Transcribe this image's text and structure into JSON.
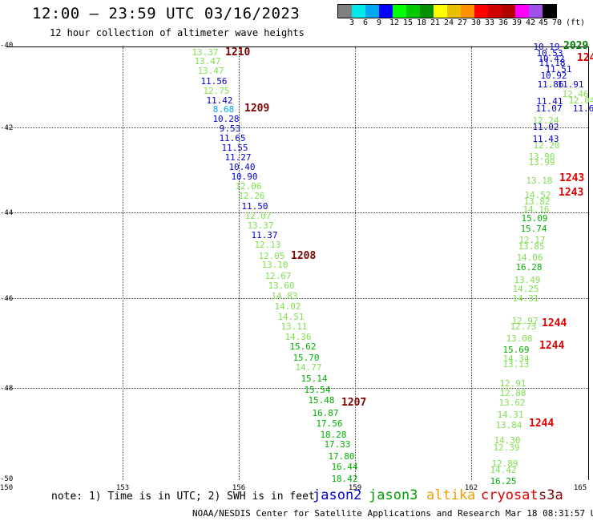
{
  "header": {
    "title": "12:00 — 23:59 UTC 03/16/2023",
    "subtitle": "12 hour collection of altimeter wave heights"
  },
  "legend": {
    "colors": [
      "#7f7f7f",
      "#00e8e8",
      "#00a8f0",
      "#0000ff",
      "#00ff00",
      "#00c800",
      "#009000",
      "#ffff00",
      "#e8c000",
      "#ff9000",
      "#ff0000",
      "#d00000",
      "#b00000",
      "#ff00ff",
      "#a050e8",
      "#000000"
    ],
    "labels": [
      "3",
      "6",
      "9",
      "12",
      "15",
      "18",
      "21",
      "24",
      "27",
      "30",
      "33",
      "36",
      "39",
      "42",
      "45",
      "70",
      "(ft)"
    ]
  },
  "axes": {
    "y_ticks": [
      "-40",
      "-42",
      "-44",
      "-46",
      "-48",
      "-50"
    ],
    "x_ticks": [
      "150",
      "153",
      "156",
      "159",
      "162",
      "165"
    ]
  },
  "tracks": [
    {
      "pass": "1210",
      "color": "#800000"
    },
    {
      "pass": "1209",
      "color": "#800000"
    },
    {
      "pass": "1208",
      "color": "#800000"
    },
    {
      "pass": "1207",
      "color": "#800000"
    },
    {
      "pass": "2029",
      "color": "#008000"
    },
    {
      "pass": "124",
      "color": "#e00000"
    },
    {
      "pass": "1243",
      "color": "#e00000"
    },
    {
      "pass": "1243",
      "color": "#e00000"
    },
    {
      "pass": "1244",
      "color": "#e00000"
    },
    {
      "pass": "1244",
      "color": "#e00000"
    },
    {
      "pass": "1244",
      "color": "#e00000"
    }
  ],
  "wave_heights": [
    {
      "v": "13.37",
      "c": "#80e050"
    },
    {
      "v": "13.47",
      "c": "#80e050"
    },
    {
      "v": "13.47",
      "c": "#80e050"
    },
    {
      "v": "11.56",
      "c": "#0000d0"
    },
    {
      "v": "12.75",
      "c": "#80e050"
    },
    {
      "v": "11.42",
      "c": "#0000d0"
    },
    {
      "v": "8.68",
      "c": "#00a8f0"
    },
    {
      "v": "10.28",
      "c": "#0000d0"
    },
    {
      "v": "9.53",
      "c": "#0000d0"
    },
    {
      "v": "11.65",
      "c": "#0000d0"
    },
    {
      "v": "11.55",
      "c": "#0000d0"
    },
    {
      "v": "11.27",
      "c": "#0000d0"
    },
    {
      "v": "10.40",
      "c": "#0000d0"
    },
    {
      "v": "10.90",
      "c": "#0000d0"
    },
    {
      "v": "12.06",
      "c": "#80e050"
    },
    {
      "v": "12.26",
      "c": "#80e050"
    },
    {
      "v": "11.50",
      "c": "#0000d0"
    },
    {
      "v": "12.07",
      "c": "#80e050"
    },
    {
      "v": "13.37",
      "c": "#80e050"
    },
    {
      "v": "11.37",
      "c": "#0000d0"
    },
    {
      "v": "12.13",
      "c": "#80e050"
    },
    {
      "v": "12.05",
      "c": "#80e050"
    },
    {
      "v": "13.10",
      "c": "#80e050"
    },
    {
      "v": "12.67",
      "c": "#80e050"
    },
    {
      "v": "13.60",
      "c": "#80e050"
    },
    {
      "v": "14.83",
      "c": "#80e050"
    },
    {
      "v": "14.02",
      "c": "#80e050"
    },
    {
      "v": "14.51",
      "c": "#80e050"
    },
    {
      "v": "13.11",
      "c": "#80e050"
    },
    {
      "v": "14.36",
      "c": "#80e050"
    },
    {
      "v": "15.62",
      "c": "#00b000"
    },
    {
      "v": "15.70",
      "c": "#00b000"
    },
    {
      "v": "14.77",
      "c": "#80e050"
    },
    {
      "v": "15.14",
      "c": "#00b000"
    },
    {
      "v": "15.54",
      "c": "#00b000"
    },
    {
      "v": "15.48",
      "c": "#00b000"
    },
    {
      "v": "16.87",
      "c": "#00b000"
    },
    {
      "v": "17.56",
      "c": "#00b000"
    },
    {
      "v": "18.28",
      "c": "#00b000"
    },
    {
      "v": "17.33",
      "c": "#00b000"
    },
    {
      "v": "17.80",
      "c": "#00b000"
    },
    {
      "v": "16.44",
      "c": "#00b000"
    },
    {
      "v": "18.42",
      "c": "#00b000"
    },
    {
      "v": "10.19",
      "c": "#0000d0"
    },
    {
      "v": "10.53",
      "c": "#0000d0"
    },
    {
      "v": "10.42",
      "c": "#0000d0"
    },
    {
      "v": "11.18",
      "c": "#0000d0"
    },
    {
      "v": "11.51",
      "c": "#0000d0"
    },
    {
      "v": "10.92",
      "c": "#0000d0"
    },
    {
      "v": "11.86",
      "c": "#0000d0"
    },
    {
      "v": "11.91",
      "c": "#0000d0"
    },
    {
      "v": "12.46",
      "c": "#80e050"
    },
    {
      "v": "12.04",
      "c": "#80e050"
    },
    {
      "v": "11.41",
      "c": "#0000d0"
    },
    {
      "v": "11.07",
      "c": "#0000d0"
    },
    {
      "v": "11.6",
      "c": "#0000d0"
    },
    {
      "v": "12.24",
      "c": "#80e050"
    },
    {
      "v": "11.02",
      "c": "#0000d0"
    },
    {
      "v": "11.43",
      "c": "#0000d0"
    },
    {
      "v": "12.20",
      "c": "#80e050"
    },
    {
      "v": "13.90",
      "c": "#80e050"
    },
    {
      "v": "13.99",
      "c": "#80e050"
    },
    {
      "v": "13.18",
      "c": "#80e050"
    },
    {
      "v": "14.52",
      "c": "#80e050"
    },
    {
      "v": "13.82",
      "c": "#80e050"
    },
    {
      "v": "14.16",
      "c": "#80e050"
    },
    {
      "v": "15.09",
      "c": "#00b000"
    },
    {
      "v": "15.74",
      "c": "#00b000"
    },
    {
      "v": "12.17",
      "c": "#80e050"
    },
    {
      "v": "13.85",
      "c": "#80e050"
    },
    {
      "v": "14.06",
      "c": "#80e050"
    },
    {
      "v": "16.28",
      "c": "#00b000"
    },
    {
      "v": "13.49",
      "c": "#80e050"
    },
    {
      "v": "14.25",
      "c": "#80e050"
    },
    {
      "v": "14.31",
      "c": "#80e050"
    },
    {
      "v": "12.97",
      "c": "#80e050"
    },
    {
      "v": "12.73",
      "c": "#80e050"
    },
    {
      "v": "13.08",
      "c": "#80e050"
    },
    {
      "v": "15.69",
      "c": "#00b000"
    },
    {
      "v": "14.34",
      "c": "#80e050"
    },
    {
      "v": "13.13",
      "c": "#80e050"
    },
    {
      "v": "12.91",
      "c": "#80e050"
    },
    {
      "v": "12.88",
      "c": "#80e050"
    },
    {
      "v": "13.62",
      "c": "#80e050"
    },
    {
      "v": "14.31",
      "c": "#80e050"
    },
    {
      "v": "13.84",
      "c": "#80e050"
    },
    {
      "v": "14.30",
      "c": "#80e050"
    },
    {
      "v": "12.39",
      "c": "#80e050"
    },
    {
      "v": "12.89",
      "c": "#80e050"
    },
    {
      "v": "14.42",
      "c": "#80e050"
    },
    {
      "v": "16.25",
      "c": "#00b000"
    }
  ],
  "note": "note: 1) Time is in UTC; 2) SWH is in feet",
  "satellites": [
    {
      "name": "jason2",
      "color": "#0000d0"
    },
    {
      "name": "jason3",
      "color": "#00a000"
    },
    {
      "name": "altika",
      "color": "#f0a000"
    },
    {
      "name": "cryosat",
      "color": "#e00000"
    },
    {
      "name": "s3a",
      "color": "#800000"
    }
  ],
  "footer": "NOAA/NESDIS Center for Satellite Applications and Research   Mar 18 08:31:57 UTC 2023"
}
